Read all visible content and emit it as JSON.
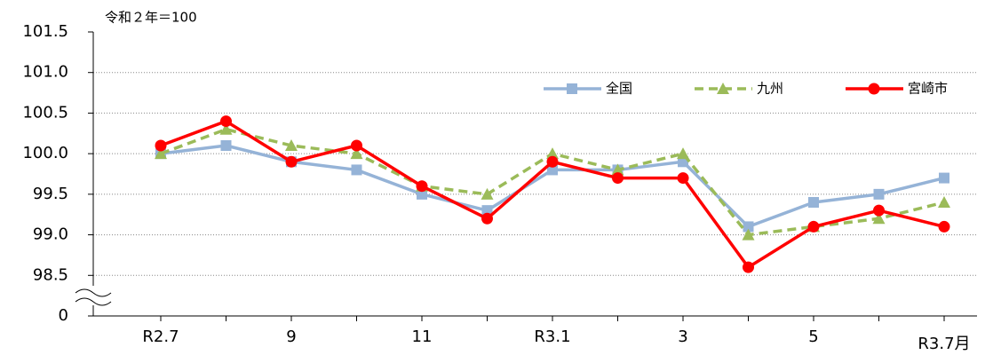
{
  "chart_data": {
    "type": "line",
    "annotation": "令和２年＝100",
    "categories": [
      "R2.7",
      null,
      "9",
      null,
      "11",
      null,
      "R3.1",
      null,
      "3",
      null,
      "5",
      null,
      "R3.7月"
    ],
    "series": [
      {
        "name": "全国",
        "color": "#95b3d7",
        "marker": "square",
        "dashed": false,
        "values": [
          100.0,
          100.1,
          99.9,
          99.8,
          99.5,
          99.3,
          99.8,
          99.8,
          99.9,
          99.1,
          99.4,
          99.5,
          99.7
        ]
      },
      {
        "name": "九州",
        "color": "#9bbb59",
        "marker": "triangle",
        "dashed": true,
        "values": [
          100.0,
          100.3,
          100.1,
          100.0,
          99.6,
          99.5,
          100.0,
          99.8,
          100.0,
          99.0,
          99.1,
          99.2,
          99.4
        ]
      },
      {
        "name": "宮崎市",
        "color": "#ff0000",
        "marker": "circle",
        "dashed": false,
        "values": [
          100.1,
          100.4,
          99.9,
          100.1,
          99.6,
          99.2,
          99.9,
          99.7,
          99.7,
          98.6,
          99.1,
          99.3,
          99.1
        ]
      }
    ],
    "ylim": [
      98.0,
      101.5
    ],
    "yticks": [
      {
        "value": 0,
        "label": "0"
      },
      98.5,
      {
        "value": 99,
        "label": "99.0"
      },
      99.5,
      {
        "value": 100,
        "label": "100.0"
      },
      100.5,
      {
        "value": 101,
        "label": "101.0"
      },
      101.5
    ],
    "axis_break": true,
    "grid": true,
    "legend": "top-right"
  }
}
